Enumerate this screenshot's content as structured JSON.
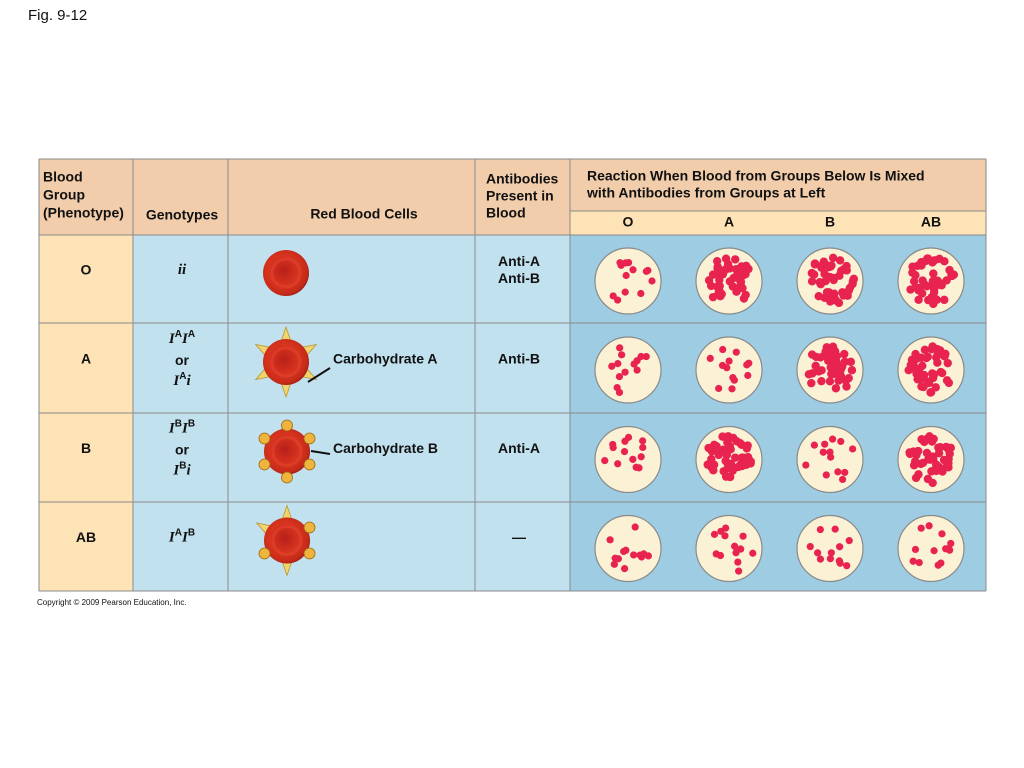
{
  "figure_label": "Fig. 9-12",
  "table": {
    "headers": {
      "phenotype": [
        "Blood",
        "Group",
        "(Phenotype)"
      ],
      "genotypes": "Genotypes",
      "cells": "Red Blood Cells",
      "antibodies": [
        "Antibodies",
        "Present in",
        "Blood"
      ],
      "reaction": [
        "Reaction When Blood from Groups Below Is Mixed",
        "with Antibodies from Groups at Left"
      ],
      "reaction_groups": [
        "O",
        "A",
        "B",
        "AB"
      ]
    },
    "rows": [
      {
        "group": "O",
        "genotype": [
          [
            {
              "t": "ii"
            }
          ]
        ],
        "antibodies": [
          "Anti-A",
          "Anti-B"
        ]
      },
      {
        "group": "A",
        "genotype": [
          [
            {
              "t": "I",
              "sup": "A"
            },
            {
              "t": "I",
              "sup": "A"
            }
          ],
          [
            {
              "t": "or"
            }
          ],
          [
            {
              "t": "I",
              "sup": "A"
            },
            {
              "t": "i"
            }
          ]
        ],
        "carbohydrate": "Carbohydrate A",
        "antibodies": [
          "Anti-B"
        ]
      },
      {
        "group": "B",
        "genotype": [
          [
            {
              "t": "I",
              "sup": "B"
            },
            {
              "t": "I",
              "sup": "B"
            }
          ],
          [
            {
              "t": "or"
            }
          ],
          [
            {
              "t": "I",
              "sup": "B"
            },
            {
              "t": "i"
            }
          ]
        ],
        "carbohydrate": "Carbohydrate B",
        "antibodies": [
          "Anti-A"
        ]
      },
      {
        "group": "AB",
        "genotype": [
          [
            {
              "t": "I",
              "sup": "A"
            },
            {
              "t": "I",
              "sup": "B"
            }
          ]
        ],
        "antibodies": [
          "—"
        ]
      }
    ]
  },
  "copyright": "Copyright © 2009 Pearson Education, Inc."
}
